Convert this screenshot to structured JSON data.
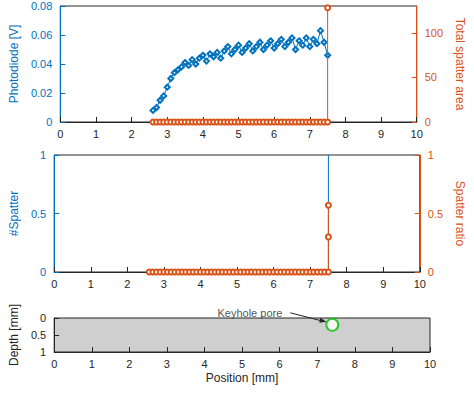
{
  "chart_data": [
    {
      "type": "line",
      "xlim": [
        0,
        10
      ],
      "xticks": [
        0,
        1,
        2,
        3,
        4,
        5,
        6,
        7,
        8,
        9,
        10
      ],
      "y_label": "Photodiode [V]",
      "ylim": [
        0,
        0.08
      ],
      "yticks": [
        0,
        0.02,
        0.04,
        0.06,
        0.08
      ],
      "y2_label": "Total spatter area",
      "y2lim": [
        0,
        130
      ],
      "y2ticks": [
        0,
        50,
        100
      ],
      "series": [
        {
          "name": "Photodiode",
          "color": "#0072bd",
          "marker": "diamond",
          "x": [
            2.6,
            2.7,
            2.8,
            2.9,
            3.0,
            3.1,
            3.2,
            3.3,
            3.4,
            3.5,
            3.6,
            3.7,
            3.8,
            3.9,
            4.0,
            4.1,
            4.2,
            4.3,
            4.4,
            4.5,
            4.6,
            4.7,
            4.8,
            4.9,
            5.0,
            5.1,
            5.2,
            5.3,
            5.4,
            5.5,
            5.6,
            5.7,
            5.8,
            5.9,
            6.0,
            6.1,
            6.2,
            6.3,
            6.4,
            6.5,
            6.6,
            6.7,
            6.8,
            6.9,
            7.0,
            7.1,
            7.2,
            7.3,
            7.4,
            7.5
          ],
          "values": [
            0.008,
            0.01,
            0.015,
            0.018,
            0.024,
            0.03,
            0.034,
            0.036,
            0.038,
            0.041,
            0.039,
            0.043,
            0.04,
            0.044,
            0.046,
            0.042,
            0.047,
            0.045,
            0.048,
            0.044,
            0.049,
            0.052,
            0.047,
            0.05,
            0.053,
            0.048,
            0.051,
            0.054,
            0.049,
            0.052,
            0.055,
            0.05,
            0.053,
            0.056,
            0.051,
            0.054,
            0.057,
            0.052,
            0.055,
            0.058,
            0.05,
            0.056,
            0.053,
            0.058,
            0.052,
            0.057,
            0.054,
            0.063,
            0.055,
            0.046
          ]
        },
        {
          "name": "Total spatter area",
          "color": "#d95319",
          "marker": "circle",
          "axis": "y2",
          "x": [
            2.6,
            2.7,
            2.8,
            2.9,
            3.0,
            3.1,
            3.2,
            3.3,
            3.4,
            3.5,
            3.6,
            3.7,
            3.8,
            3.9,
            4.0,
            4.1,
            4.2,
            4.3,
            4.4,
            4.5,
            4.6,
            4.7,
            4.8,
            4.9,
            5.0,
            5.1,
            5.2,
            5.3,
            5.4,
            5.5,
            5.6,
            5.7,
            5.8,
            5.9,
            6.0,
            6.1,
            6.2,
            6.3,
            6.4,
            6.5,
            6.6,
            6.7,
            6.8,
            6.9,
            7.0,
            7.1,
            7.2,
            7.3,
            7.4,
            7.5,
            7.5
          ],
          "values": [
            0,
            0,
            0,
            0,
            0,
            0,
            0,
            0,
            0,
            0,
            0,
            0,
            0,
            0,
            0,
            0,
            0,
            0,
            0,
            0,
            0,
            0,
            0,
            0,
            0,
            0,
            0,
            0,
            0,
            0,
            0,
            0,
            0,
            0,
            0,
            0,
            0,
            0,
            0,
            0,
            0,
            0,
            0,
            0,
            0,
            0,
            0,
            0,
            0,
            0,
            128
          ]
        }
      ]
    },
    {
      "type": "line",
      "xlim": [
        0,
        10
      ],
      "xticks": [
        0,
        1,
        2,
        3,
        4,
        5,
        6,
        7,
        8,
        9,
        10
      ],
      "y_label": "#Spatter",
      "ylim": [
        0,
        1
      ],
      "yticks": [
        0,
        0.5,
        1
      ],
      "y2_label": "Spatter ratio",
      "y2lim": [
        0,
        1
      ],
      "y2ticks": [
        0,
        0.5,
        1
      ],
      "series": [
        {
          "name": "#Spatter",
          "color": "#0072bd",
          "marker": "none",
          "x": [
            2.6,
            2.7,
            2.8,
            2.9,
            3.0,
            3.1,
            3.2,
            3.3,
            3.4,
            3.5,
            3.6,
            3.7,
            3.8,
            3.9,
            4.0,
            4.1,
            4.2,
            4.3,
            4.4,
            4.5,
            4.6,
            4.7,
            4.8,
            4.9,
            5.0,
            5.1,
            5.2,
            5.3,
            5.4,
            5.5,
            5.6,
            5.7,
            5.8,
            5.9,
            6.0,
            6.1,
            6.2,
            6.3,
            6.4,
            6.5,
            6.6,
            6.7,
            6.8,
            6.9,
            7.0,
            7.1,
            7.2,
            7.3,
            7.4,
            7.5,
            7.5
          ],
          "values": [
            0,
            0,
            0,
            0,
            0,
            0,
            0,
            0,
            0,
            0,
            0,
            0,
            0,
            0,
            0,
            0,
            0,
            0,
            0,
            0,
            0,
            0,
            0,
            0,
            0,
            0,
            0,
            0,
            0,
            0,
            0,
            0,
            0,
            0,
            0,
            0,
            0,
            0,
            0,
            0,
            0,
            0,
            0,
            0,
            0,
            0,
            0,
            0,
            0,
            0,
            1
          ]
        },
        {
          "name": "Spatter ratio",
          "color": "#d95319",
          "marker": "circle",
          "axis": "y2",
          "x": [
            2.6,
            2.7,
            2.8,
            2.9,
            3.0,
            3.1,
            3.2,
            3.3,
            3.4,
            3.5,
            3.6,
            3.7,
            3.8,
            3.9,
            4.0,
            4.1,
            4.2,
            4.3,
            4.4,
            4.5,
            4.6,
            4.7,
            4.8,
            4.9,
            5.0,
            5.1,
            5.2,
            5.3,
            5.4,
            5.5,
            5.6,
            5.7,
            5.8,
            5.9,
            6.0,
            6.1,
            6.2,
            6.3,
            6.4,
            6.5,
            6.6,
            6.7,
            6.8,
            6.9,
            7.0,
            7.1,
            7.2,
            7.3,
            7.4,
            7.5,
            7.5,
            7.5
          ],
          "values": [
            0,
            0,
            0,
            0,
            0,
            0,
            0,
            0,
            0,
            0,
            0,
            0,
            0,
            0,
            0,
            0,
            0,
            0,
            0,
            0,
            0,
            0,
            0,
            0,
            0,
            0,
            0,
            0,
            0,
            0,
            0,
            0,
            0,
            0,
            0,
            0,
            0,
            0,
            0,
            0,
            0,
            0,
            0,
            0,
            0,
            0,
            0,
            0,
            0,
            0,
            0.3,
            0.57
          ]
        }
      ]
    },
    {
      "type": "image",
      "x_label": "Position [mm]",
      "xlim": [
        0,
        10
      ],
      "xticks": [
        0,
        1,
        2,
        3,
        4,
        5,
        6,
        7,
        8,
        9,
        10
      ],
      "y_label": "Depth [mm]",
      "ylim": [
        1,
        0
      ],
      "yticks": [
        0,
        0.5,
        1
      ],
      "annotations": [
        {
          "text": "Keyhole pore",
          "x": 7.4,
          "y": 0.2,
          "color": "#00c000",
          "marker": "circle"
        }
      ]
    }
  ]
}
